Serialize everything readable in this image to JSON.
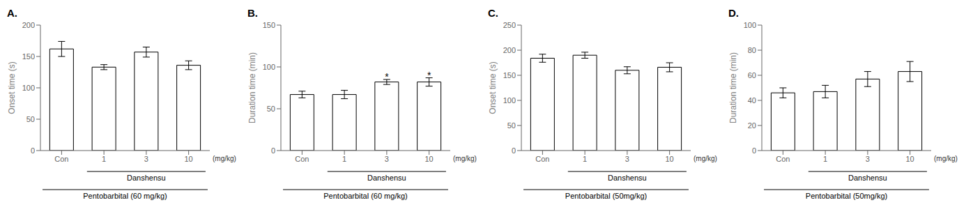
{
  "chart_data": [
    {
      "type": "bar",
      "title": "A.",
      "ylabel": "Onset time (s)",
      "categories": [
        "Con",
        "1",
        "3",
        "10"
      ],
      "values": [
        162,
        133,
        157,
        136
      ],
      "errors": [
        12,
        4,
        8,
        7
      ],
      "significance": [
        false,
        false,
        false,
        false
      ],
      "significance_mark": "*",
      "annotations": [
        "(mg/kg)",
        "Danshensu",
        "Pentobarbital (60 mg/kg)"
      ],
      "ylim": [
        0,
        200
      ],
      "yticks": [
        0,
        50,
        100,
        150,
        200
      ],
      "color": "#ffffff",
      "grid": false
    },
    {
      "type": "bar",
      "title": "B.",
      "ylabel": "Duration time (min)",
      "categories": [
        "Con",
        "1",
        "3",
        "10"
      ],
      "values": [
        67,
        67,
        82,
        82
      ],
      "errors": [
        4,
        5,
        3,
        5
      ],
      "significance": [
        false,
        false,
        true,
        true
      ],
      "significance_mark": "*",
      "annotations": [
        "(mg/kg)",
        "Danshensu",
        "Pentobarbital (60 mg/kg)"
      ],
      "ylim": [
        0,
        150
      ],
      "yticks": [
        0,
        50,
        100,
        150
      ],
      "color": "#ffffff",
      "grid": false
    },
    {
      "type": "bar",
      "title": "C.",
      "ylabel": "Onset time (s)",
      "categories": [
        "Con",
        "1",
        "3",
        "10"
      ],
      "values": [
        184,
        190,
        160,
        166
      ],
      "errors": [
        8,
        6,
        7,
        9
      ],
      "significance": [
        false,
        false,
        false,
        false
      ],
      "significance_mark": "*",
      "annotations": [
        "(mg/kg)",
        "Danshensu",
        "Pentobarbital (50mg/kg)"
      ],
      "ylim": [
        0,
        250
      ],
      "yticks": [
        0,
        50,
        100,
        150,
        200,
        250
      ],
      "color": "#ffffff",
      "grid": false
    },
    {
      "type": "bar",
      "title": "D.",
      "ylabel": "Duration time (min)",
      "categories": [
        "Con",
        "1",
        "3",
        "10"
      ],
      "values": [
        46,
        47,
        57,
        63
      ],
      "errors": [
        4,
        5,
        6,
        8
      ],
      "significance": [
        false,
        false,
        false,
        false
      ],
      "significance_mark": "*",
      "annotations": [
        "(mg/kg)",
        "Danshensu",
        "Pentobarbital (50mg/kg)"
      ],
      "ylim": [
        0,
        100
      ],
      "yticks": [
        0,
        20,
        40,
        60,
        80,
        100
      ],
      "color": "#ffffff",
      "grid": false
    }
  ]
}
